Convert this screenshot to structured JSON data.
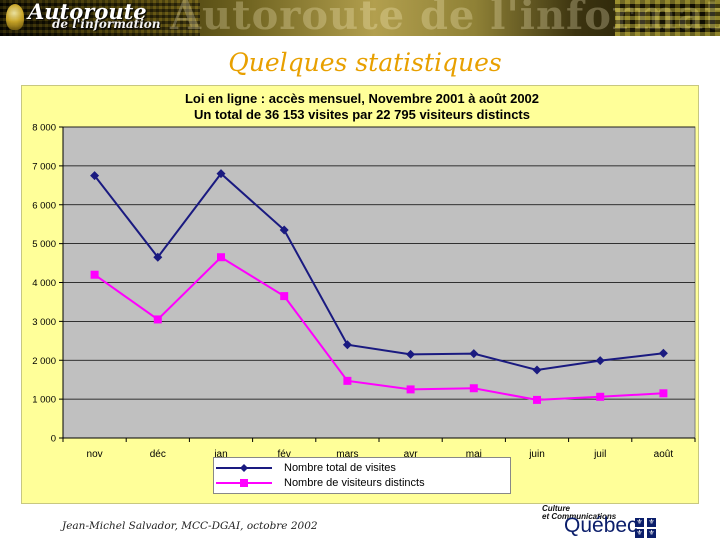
{
  "header": {
    "banner_title": "Autoroute",
    "banner_subtitle": "de l'information",
    "banner_background_text": "Autoroute de l'information"
  },
  "slide": {
    "title": "Quelques statistiques"
  },
  "footer": {
    "author": "Jean-Michel Salvador, MCC-DGAI, octobre 2002",
    "logo_line1": "Culture",
    "logo_line2": "et Communications",
    "logo_wordmark": "Québec"
  },
  "colors": {
    "slide_title": "#e8a000",
    "chart_background": "#ffff99",
    "plot_area": "#c0c0c0",
    "series_total": "#1a1a80",
    "series_distinct": "#ff00ff"
  },
  "chart_data": {
    "type": "line",
    "title": "Loi en ligne : accès mensuel, Novembre 2001 à août 2002",
    "subtitle": "Un total de 36 153 visites par 22 795  visiteurs distincts",
    "categories": [
      "nov",
      "déc",
      "jan",
      "fév",
      "mars",
      "avr",
      "mai",
      "juin",
      "juil",
      "août"
    ],
    "series": [
      {
        "name": "Nombre total de visites",
        "color": "#1a1a80",
        "marker": "diamond",
        "values": [
          6750,
          4650,
          6800,
          5350,
          2400,
          2150,
          2170,
          1750,
          1990,
          2180
        ]
      },
      {
        "name": "Nombre de visiteurs distincts",
        "color": "#ff00ff",
        "marker": "square",
        "values": [
          4200,
          3050,
          4650,
          3650,
          1470,
          1250,
          1280,
          980,
          1060,
          1150
        ]
      }
    ],
    "ylim": [
      0,
      8000
    ],
    "yticks": [
      0,
      1000,
      2000,
      3000,
      4000,
      5000,
      6000,
      7000,
      8000
    ],
    "ytick_labels": [
      "0",
      "1 000",
      "2 000",
      "3 000",
      "4 000",
      "5 000",
      "6 000",
      "7 000",
      "8 000"
    ],
    "grid": true,
    "legend_position": "bottom"
  }
}
